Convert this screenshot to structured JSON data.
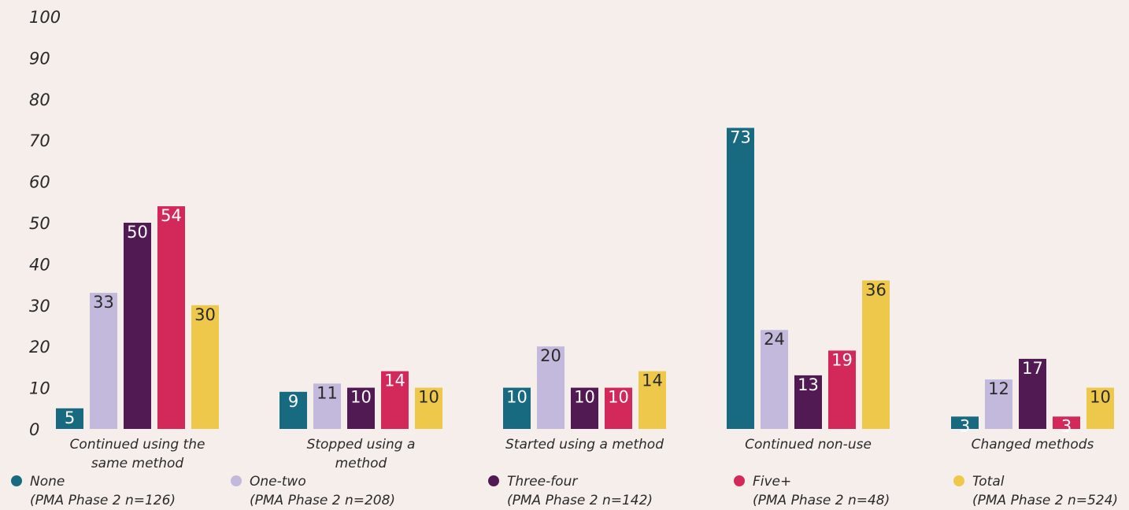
{
  "chart_data": {
    "type": "bar",
    "ylim": [
      0,
      100
    ],
    "yticks": [
      "0",
      "10",
      "20",
      "30",
      "40",
      "50",
      "60",
      "70",
      "80",
      "90",
      "100"
    ],
    "categories": [
      [
        "Continued using the",
        "same method"
      ],
      [
        "Stopped using a",
        "method"
      ],
      [
        "Started using a method"
      ],
      [
        "Continued non-use"
      ],
      [
        "Changed methods"
      ]
    ],
    "series": [
      {
        "name": "None",
        "sub": "(PMA Phase 2 n=126)",
        "color": "#186a80",
        "values": [
          5,
          9,
          10,
          73,
          3
        ],
        "label_color": "#ffffff"
      },
      {
        "name": "One-two",
        "sub": "(PMA Phase 2 n=208)",
        "color": "#c3b9dc",
        "values": [
          33,
          11,
          20,
          24,
          12
        ],
        "label_color": "#2a2a2a"
      },
      {
        "name": "Three-four",
        "sub": "(PMA Phase 2 n=142)",
        "color": "#521a52",
        "values": [
          50,
          10,
          10,
          13,
          17
        ],
        "label_color": "#ffffff"
      },
      {
        "name": "Five+",
        "sub": "(PMA Phase 2 n=48)",
        "color": "#d3285a",
        "values": [
          54,
          14,
          10,
          19,
          3
        ],
        "label_color": "#ffffff"
      },
      {
        "name": "Total",
        "sub": "(PMA Phase 2 n=524)",
        "color": "#eec84a",
        "values": [
          30,
          10,
          14,
          36,
          10
        ],
        "label_color": "#2a2a2a"
      }
    ],
    "legend_position": "bottom",
    "grid": false
  }
}
